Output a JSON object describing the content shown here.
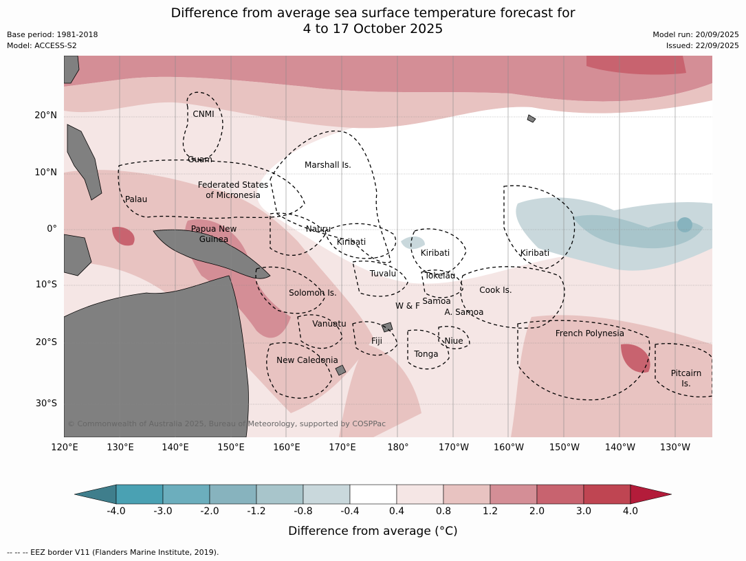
{
  "header": {
    "title_line1": "Difference from average sea surface temperature forecast for",
    "title_line2": "4 to 17 October 2025",
    "base_period": "Base period: 1981-2018",
    "model": "Model: ACCESS-S2",
    "model_run": "Model run: 20/09/2025",
    "issued": "Issued: 22/09/2025"
  },
  "map": {
    "lat_labels": [
      "20°N",
      "10°N",
      "0°",
      "10°S",
      "20°S",
      "30°S"
    ],
    "lon_labels": [
      "120°E",
      "130°E",
      "140°E",
      "150°E",
      "160°E",
      "170°E",
      "180°",
      "170°W",
      "160°W",
      "150°W",
      "140°W",
      "130°W"
    ],
    "regions": {
      "cnmi": "CNMI",
      "guam": "Guam",
      "marshall": "Marshall Is.",
      "fsm1": "Federated States",
      "fsm2": "of Micronesia",
      "palau": "Palau",
      "nauru": "Nauru",
      "kiribati_w": "Kiribati",
      "kiribati_c": "Kiribati",
      "kiribati_e": "Kiribati",
      "png1": "Papua New",
      "png2": "Guinea",
      "tuvalu": "Tuvalu",
      "tokelau": "Tokelau",
      "cook": "Cook Is.",
      "solomon": "Solomon Is.",
      "wf": "W & F",
      "samoa": "Samoa",
      "asamoa": "A. Samoa",
      "vanuatu": "Vanuatu",
      "fiji": "Fiji",
      "niue": "Niue",
      "tonga": "Tonga",
      "frpoly": "French Polynesia",
      "newcal": "New Caledonia",
      "pitcairn1": "Pitcairn",
      "pitcairn2": "Is."
    },
    "copyright": "© Commonwealth of Australia 2025, Bureau of Meteorology, supported by COSPPac"
  },
  "colorbar": {
    "colors": [
      "#3f7e8c",
      "#4aa1b3",
      "#6caebd",
      "#87b3be",
      "#a8c5cb",
      "#c9d8dc",
      "#ffffff",
      "#f5e6e5",
      "#e8c3c1",
      "#d48e96",
      "#c8636f",
      "#bf4552",
      "#b31c3a"
    ],
    "ticks": [
      "-4.0",
      "-3.0",
      "-2.0",
      "-1.2",
      "-0.8",
      "-0.4",
      "0.4",
      "0.8",
      "1.2",
      "2.0",
      "3.0",
      "4.0"
    ],
    "title": "Difference from average (°C)"
  },
  "footer": "--  --  -- EEZ border V11 (Flanders Marine Institute, 2019)."
}
